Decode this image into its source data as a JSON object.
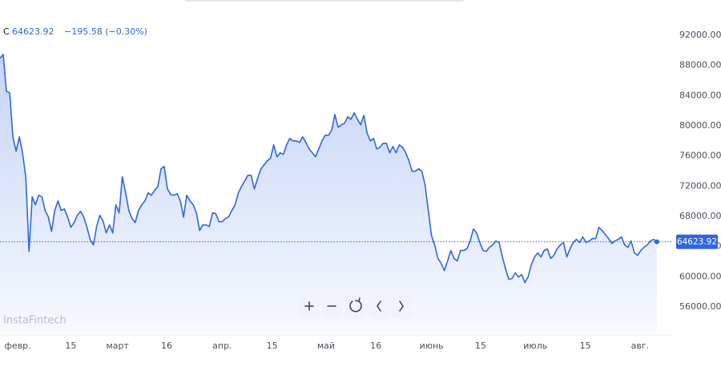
{
  "chart_data": {
    "type": "line",
    "price_label": "C",
    "change_label": "−195.58 (−0.30%)",
    "watermark": "InstaFintech",
    "color": "#2f66e0",
    "values": [
      88934,
      89464,
      84583,
      84371,
      78536,
      76626,
      78536,
      76414,
      73231,
      63363,
      70578,
      69517,
      70790,
      70578,
      68775,
      67926,
      66016,
      68775,
      70048,
      68775,
      68987,
      67926,
      66546,
      67183,
      68138,
      68668,
      67926,
      66546,
      64955,
      64212,
      66653,
      68138,
      67395,
      65804,
      66865,
      65804,
      69517,
      68456,
      73231,
      71109,
      68775,
      67714,
      67183,
      68775,
      69517,
      70048,
      71109,
      70790,
      71427,
      71958,
      74292,
      74610,
      71639,
      70897,
      70790,
      71003,
      70048,
      67926,
      70790,
      70048,
      69517,
      68456,
      66122,
      66865,
      66865,
      66653,
      68456,
      68350,
      67289,
      67289,
      67714,
      67926,
      68775,
      69517,
      71109,
      71958,
      72700,
      73443,
      73443,
      71639,
      73019,
      74292,
      74822,
      75353,
      75671,
      77475,
      75883,
      76414,
      76202,
      77475,
      78324,
      78005,
      78005,
      77793,
      78536,
      77793,
      76944,
      76414,
      75883,
      76944,
      78005,
      78748,
      78748,
      79385,
      81507,
      79809,
      80127,
      80339,
      81188,
      80870,
      81719,
      80870,
      80127,
      81400,
      79066,
      78005,
      78324,
      76944,
      77156,
      77687,
      77687,
      76414,
      77263,
      76414,
      77475,
      77156,
      76414,
      75353,
      73973,
      73973,
      74292,
      73973,
      72170,
      68775,
      65485,
      64212,
      62408,
      61772,
      60817,
      62090,
      63469,
      62408,
      62090,
      63469,
      63469,
      63682,
      64743,
      66334,
      65804,
      64531,
      63469,
      63363,
      63894,
      64212,
      64743,
      64531,
      62621,
      61029,
      59650,
      59756,
      60499,
      59968,
      60286,
      59225,
      59968,
      61560,
      62621,
      63151,
      62621,
      63469,
      63682,
      62408,
      62833,
      63682,
      64212,
      64531,
      62621,
      63682,
      64531,
      64955,
      64531,
      65273,
      64531,
      64743,
      65061,
      65061,
      66546,
      66122,
      65592,
      65061,
      64424,
      64743,
      64955,
      65273,
      64212,
      63894,
      64743,
      63151,
      62833,
      63469,
      63894,
      64212,
      64743,
      64955,
      64623.92
    ],
    "ylim": [
      52600,
      96670
    ],
    "yticks": [
      {
        "value": 56000,
        "label": "56000.00"
      },
      {
        "value": 60000,
        "label": "60000.00"
      },
      {
        "value": 64000,
        "label": "64000.00"
      },
      {
        "value": 68000,
        "label": "68000.00"
      },
      {
        "value": 72000,
        "label": "72000.00"
      },
      {
        "value": 76000,
        "label": "76000.00"
      },
      {
        "value": 80000,
        "label": "80000.00"
      },
      {
        "value": 84000,
        "label": "84000.00"
      },
      {
        "value": 88000,
        "label": "88000.00"
      },
      {
        "value": 92000,
        "label": "92000.00"
      }
    ],
    "xticks": [
      {
        "value": 5.5,
        "label": "февр."
      },
      {
        "value": 22,
        "label": "15"
      },
      {
        "value": 36.5,
        "label": "март"
      },
      {
        "value": 51.75,
        "label": "16"
      },
      {
        "value": 69,
        "label": "апр."
      },
      {
        "value": 84.5,
        "label": "15"
      },
      {
        "value": 101.25,
        "label": "май"
      },
      {
        "value": 116.75,
        "label": "16"
      },
      {
        "value": 134,
        "label": "июнь"
      },
      {
        "value": 149.25,
        "label": "15"
      },
      {
        "value": 166.25,
        "label": "июль"
      },
      {
        "value": 181.75,
        "label": "15"
      },
      {
        "value": 198.75,
        "label": "авг."
      }
    ],
    "grid": false
  }
}
